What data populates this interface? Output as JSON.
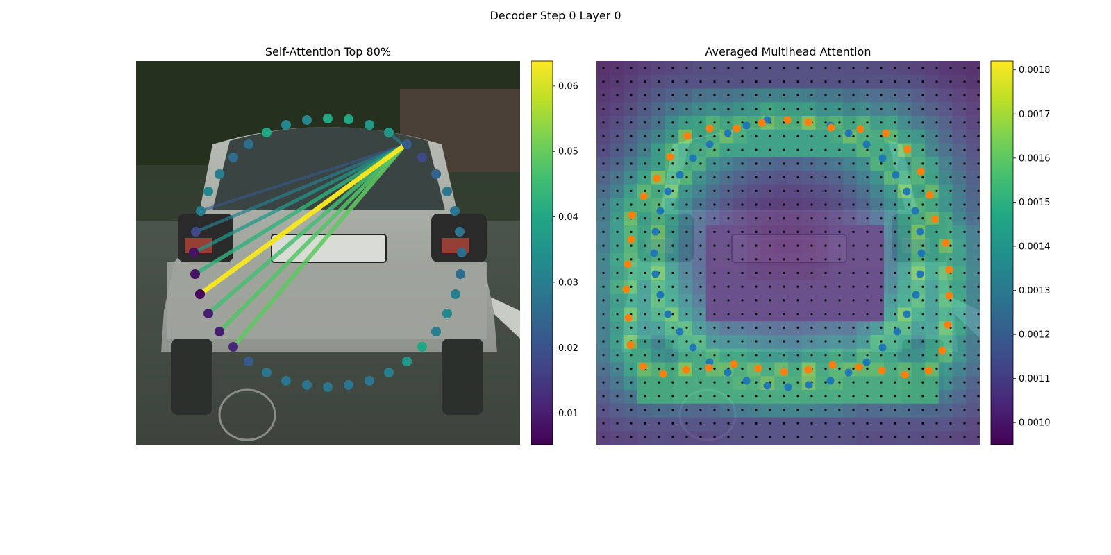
{
  "suptitle": "Decoder Step 0 Layer 0",
  "colors": {
    "viridis": [
      "#440154",
      "#482475",
      "#414487",
      "#355f8d",
      "#2a788e",
      "#21918c",
      "#22a884",
      "#44bf70",
      "#7ad151",
      "#bddf26",
      "#fde725"
    ],
    "blue_points": "#1f77b4",
    "orange_points": "#ff7f0e",
    "grid_dots": "#000000"
  },
  "chart_data": [
    {
      "type": "scatter",
      "title": "Self-Attention Top 80%",
      "background": "photo of the rear of a silver hatchback car on a street",
      "colorbar": {
        "ticks": [
          0.01,
          0.02,
          0.03,
          0.04,
          0.05,
          0.06
        ],
        "tick_labels": [
          "0.01",
          "0.02",
          "0.03",
          "0.04",
          "0.05",
          "0.06"
        ],
        "range": [
          0.0052,
          0.0638
        ]
      },
      "points": [
        {
          "x": 472,
          "y": 171,
          "v": 0.04
        },
        {
          "x": 502,
          "y": 172,
          "v": 0.04
        },
        {
          "x": 532,
          "y": 180,
          "v": 0.036
        },
        {
          "x": 560,
          "y": 191,
          "v": 0.036
        },
        {
          "x": 586,
          "y": 208,
          "v": 0.022
        },
        {
          "x": 608,
          "y": 227,
          "v": 0.018
        },
        {
          "x": 628,
          "y": 251,
          "v": 0.024
        },
        {
          "x": 644,
          "y": 276,
          "v": 0.028
        },
        {
          "x": 655,
          "y": 304,
          "v": 0.028
        },
        {
          "x": 662,
          "y": 334,
          "v": 0.028
        },
        {
          "x": 665,
          "y": 364,
          "v": 0.026
        },
        {
          "x": 663,
          "y": 395,
          "v": 0.026
        },
        {
          "x": 656,
          "y": 424,
          "v": 0.03
        },
        {
          "x": 644,
          "y": 452,
          "v": 0.032
        },
        {
          "x": 628,
          "y": 478,
          "v": 0.03
        },
        {
          "x": 608,
          "y": 500,
          "v": 0.04
        },
        {
          "x": 586,
          "y": 521,
          "v": 0.036
        },
        {
          "x": 560,
          "y": 537,
          "v": 0.03
        },
        {
          "x": 532,
          "y": 549,
          "v": 0.028
        },
        {
          "x": 502,
          "y": 555,
          "v": 0.028
        },
        {
          "x": 472,
          "y": 558,
          "v": 0.028
        },
        {
          "x": 442,
          "y": 555,
          "v": 0.028
        },
        {
          "x": 412,
          "y": 549,
          "v": 0.028
        },
        {
          "x": 384,
          "y": 537,
          "v": 0.028
        },
        {
          "x": 358,
          "y": 521,
          "v": 0.022
        },
        {
          "x": 336,
          "y": 500,
          "v": 0.012
        },
        {
          "x": 316,
          "y": 478,
          "v": 0.01
        },
        {
          "x": 300,
          "y": 452,
          "v": 0.01
        },
        {
          "x": 288,
          "y": 424,
          "v": 0.006
        },
        {
          "x": 281,
          "y": 395,
          "v": 0.008
        },
        {
          "x": 279,
          "y": 364,
          "v": 0.008
        },
        {
          "x": 282,
          "y": 334,
          "v": 0.018
        },
        {
          "x": 289,
          "y": 304,
          "v": 0.03
        },
        {
          "x": 300,
          "y": 276,
          "v": 0.032
        },
        {
          "x": 316,
          "y": 251,
          "v": 0.03
        },
        {
          "x": 336,
          "y": 227,
          "v": 0.026
        },
        {
          "x": 358,
          "y": 208,
          "v": 0.026
        },
        {
          "x": 384,
          "y": 191,
          "v": 0.04
        },
        {
          "x": 412,
          "y": 180,
          "v": 0.032
        },
        {
          "x": 442,
          "y": 173,
          "v": 0.032
        }
      ],
      "lines": [
        {
          "from": [
            582,
            210
          ],
          "to": [
            288,
            424
          ],
          "v": 0.063
        },
        {
          "from": [
            582,
            210
          ],
          "to": [
            336,
            500
          ],
          "v": 0.049
        },
        {
          "from": [
            582,
            210
          ],
          "to": [
            316,
            478
          ],
          "v": 0.048
        },
        {
          "from": [
            582,
            210
          ],
          "to": [
            300,
            452
          ],
          "v": 0.046
        },
        {
          "from": [
            582,
            210
          ],
          "to": [
            281,
            395
          ],
          "v": 0.043
        },
        {
          "from": [
            582,
            210
          ],
          "to": [
            279,
            364
          ],
          "v": 0.036
        },
        {
          "from": [
            582,
            210
          ],
          "to": [
            282,
            334
          ],
          "v": 0.03
        },
        {
          "from": [
            582,
            210
          ],
          "to": [
            289,
            304
          ],
          "v": 0.022
        },
        {
          "from": [
            582,
            210
          ],
          "to": [
            560,
            191
          ],
          "v": 0.03
        }
      ]
    },
    {
      "type": "heatmap",
      "title": "Averaged Multihead Attention",
      "background": "same car photo overlaid with attention heatmap",
      "grid": {
        "cols": 28,
        "rows": 28
      },
      "colorbar": {
        "ticks": [
          0.001,
          0.0011,
          0.0012,
          0.0013,
          0.0014,
          0.0015,
          0.0016,
          0.0017,
          0.0018
        ],
        "tick_labels": [
          "0.0010",
          "0.0011",
          "0.0012",
          "0.0013",
          "0.0014",
          "0.0015",
          "0.0016",
          "0.0017",
          "0.0018"
        ],
        "range": [
          0.00095,
          0.00182
        ]
      },
      "blue_points": [
        [
          1105,
          173
        ],
        [
          1196,
          181
        ],
        [
          1222,
          192
        ],
        [
          1248,
          208
        ],
        [
          1271,
          228
        ],
        [
          1290,
          252
        ],
        [
          1306,
          276
        ],
        [
          1318,
          304
        ],
        [
          1325,
          334
        ],
        [
          1327,
          365
        ],
        [
          1325,
          395
        ],
        [
          1319,
          425
        ],
        [
          1306,
          453
        ],
        [
          1292,
          478
        ],
        [
          1271,
          501
        ],
        [
          1248,
          522
        ],
        [
          1222,
          537
        ],
        [
          1196,
          549
        ],
        [
          1165,
          555
        ],
        [
          1135,
          558
        ],
        [
          1105,
          556
        ],
        [
          1075,
          549
        ],
        [
          1048,
          537
        ],
        [
          1022,
          522
        ],
        [
          998,
          501
        ],
        [
          979,
          478
        ],
        [
          962,
          453
        ],
        [
          951,
          425
        ],
        [
          944,
          395
        ],
        [
          942,
          365
        ],
        [
          944,
          334
        ],
        [
          951,
          304
        ],
        [
          962,
          276
        ],
        [
          979,
          252
        ],
        [
          998,
          228
        ],
        [
          1022,
          208
        ],
        [
          1048,
          192
        ],
        [
          1075,
          181
        ]
      ],
      "orange_points": [
        [
          1134,
          173
        ],
        [
          1164,
          176
        ],
        [
          1197,
          184
        ],
        [
          1239,
          186
        ],
        [
          1276,
          192
        ],
        [
          1307,
          215
        ],
        [
          1326,
          247
        ],
        [
          1339,
          281
        ],
        [
          1347,
          316
        ],
        [
          1362,
          350
        ],
        [
          1367,
          389
        ],
        [
          1367,
          426
        ],
        [
          1365,
          468
        ],
        [
          1357,
          505
        ],
        [
          1337,
          534
        ],
        [
          1303,
          540
        ],
        [
          1270,
          534
        ],
        [
          1237,
          529
        ],
        [
          1199,
          526
        ],
        [
          1164,
          533
        ],
        [
          1129,
          536
        ],
        [
          1092,
          531
        ],
        [
          1057,
          525
        ],
        [
          1021,
          530
        ],
        [
          988,
          533
        ],
        [
          955,
          539
        ],
        [
          926,
          528
        ],
        [
          908,
          497
        ],
        [
          905,
          458
        ],
        [
          902,
          417
        ],
        [
          904,
          381
        ],
        [
          909,
          345
        ],
        [
          910,
          310
        ],
        [
          927,
          283
        ],
        [
          946,
          257
        ],
        [
          965,
          226
        ],
        [
          990,
          196
        ],
        [
          1022,
          185
        ],
        [
          1061,
          185
        ],
        [
          1097,
          177
        ]
      ]
    }
  ]
}
